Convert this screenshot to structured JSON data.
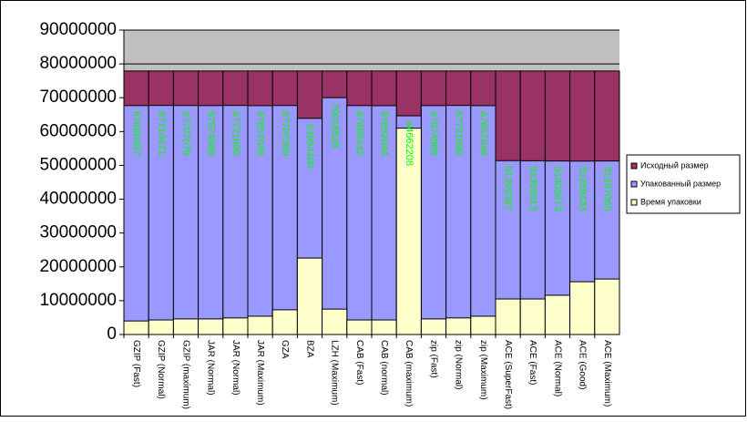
{
  "chart_data": {
    "type": "bar",
    "overlap": true,
    "categories": [
      "GZIP (Fast)",
      "GZIP (Normal)",
      "GZIP (maximum)",
      "JAR (Normal)",
      "JAR (Normal)",
      "JAR (Maximum)",
      "GZA",
      "BZA",
      "LZH (Maximum)",
      "CAB (Fast)",
      "CAB (normal)",
      "CAB (maximum)",
      "zip (Fast)",
      "zip (Normal)",
      "zip (Maximum)",
      "ACE (SuperFast)",
      "ACE (Fast)",
      "ACE (Normal)",
      "ACE (Good)",
      "ACE (Maximum)"
    ],
    "series": [
      {
        "name": "Исходный размер",
        "color": "#993366",
        "values": [
          77900000,
          77900000,
          77900000,
          77900000,
          77900000,
          77900000,
          77900000,
          77900000,
          77900000,
          77900000,
          77900000,
          77900000,
          77900000,
          77900000,
          77900000,
          77900000,
          77900000,
          77900000,
          77900000,
          77900000
        ]
      },
      {
        "name": "Упакованный размер",
        "color": "#9999ff",
        "data_labels": true,
        "values": [
          67685457,
          67716471,
          67707079,
          67674989,
          67721690,
          67657646,
          67707269,
          63904400,
          70018528,
          67685342,
          67652944,
          64662208,
          67674989,
          67721690,
          67657646,
          51395367,
          51356613,
          51300673,
          51259433,
          51297065
        ]
      },
      {
        "name": "Время упаковки",
        "color": "#ffffcc",
        "values": [
          4000000,
          4300000,
          4600000,
          4600000,
          4900000,
          5400000,
          7300000,
          22600000,
          7500000,
          4300000,
          4300000,
          61000000,
          4600000,
          4900000,
          5400000,
          10500000,
          10500000,
          11600000,
          15600000,
          16400000
        ]
      }
    ],
    "ylim": [
      0,
      90000000
    ],
    "yticks": [
      0,
      10000000,
      20000000,
      30000000,
      40000000,
      50000000,
      60000000,
      70000000,
      80000000,
      90000000
    ],
    "grid": true,
    "legend": "right",
    "label_color": "#00ff00"
  }
}
